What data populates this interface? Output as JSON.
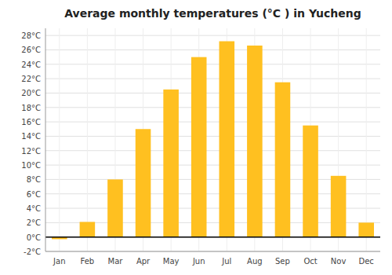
{
  "chart_data": {
    "type": "bar",
    "title": "Average monthly temperatures (°C ) in Yucheng",
    "categories": [
      "Jan",
      "Feb",
      "Mar",
      "Apr",
      "May",
      "Jun",
      "Jul",
      "Aug",
      "Sep",
      "Oct",
      "Nov",
      "Dec"
    ],
    "values": [
      -0.3,
      2.1,
      8.0,
      15.0,
      20.5,
      25.0,
      27.2,
      26.6,
      21.5,
      15.5,
      8.5,
      2.0
    ],
    "color": "#FFC020",
    "ylim": [
      -2,
      29
    ],
    "yticks": [
      {
        "value": -2,
        "label": "-2°C"
      },
      {
        "value": 0,
        "label": "0°C"
      },
      {
        "value": 2,
        "label": "2°C"
      },
      {
        "value": 4,
        "label": "4°C"
      },
      {
        "value": 6,
        "label": "6°C"
      },
      {
        "value": 8,
        "label": "8°C"
      },
      {
        "value": 10,
        "label": "10°C"
      },
      {
        "value": 12,
        "label": "12°C"
      },
      {
        "value": 14,
        "label": "14°C"
      },
      {
        "value": 16,
        "label": "16°C"
      },
      {
        "value": 18,
        "label": "18°C"
      },
      {
        "value": 20,
        "label": "20°C"
      },
      {
        "value": 22,
        "label": "22°C"
      },
      {
        "value": 24,
        "label": "24°C"
      },
      {
        "value": 26,
        "label": "26°C"
      },
      {
        "value": 28,
        "label": "28°C"
      }
    ],
    "grid": true
  }
}
